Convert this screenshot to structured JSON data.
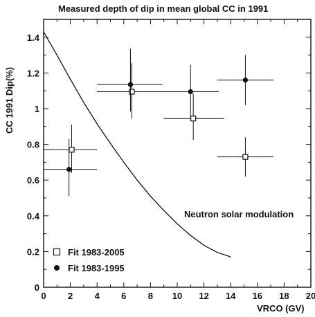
{
  "chart_data": {
    "type": "scatter",
    "title": "Measured depth of dip in mean global CC in 1991",
    "xlabel": "VRCO (GV)",
    "ylabel": "CC 1991 Dip(%)",
    "xlim": [
      0,
      20
    ],
    "ylim": [
      0,
      1.5
    ],
    "xticks": [
      0,
      2,
      4,
      6,
      8,
      10,
      12,
      14,
      16,
      18,
      20
    ],
    "yticks": [
      0,
      0.2,
      0.4,
      0.6,
      0.8,
      1,
      1.2,
      1.4
    ],
    "grid": false,
    "legend_position": "bottom-left",
    "series": [
      {
        "name": "Fit 1983-2005",
        "marker": "open-square",
        "color": "#111111",
        "points": [
          {
            "x": 2.1,
            "y": 0.77,
            "xerr": [
              2.1,
              1.9
            ],
            "yerr": [
              0.13,
              0.14
            ]
          },
          {
            "x": 6.6,
            "y": 1.095,
            "xerr": [
              2.6,
              6.4
            ],
            "yerr": [
              0.15,
              0.16
            ]
          },
          {
            "x": 11.2,
            "y": 0.945,
            "xerr": [
              2.2,
              2.3
            ],
            "yerr": [
              0.12,
              0.14
            ]
          },
          {
            "x": 15.1,
            "y": 0.73,
            "xerr": [
              2.1,
              2.1
            ],
            "yerr": [
              0.11,
              0.11
            ]
          }
        ]
      },
      {
        "name": "Fit 1983-1995",
        "marker": "filled-circle",
        "color": "#111111",
        "points": [
          {
            "x": 1.9,
            "y": 0.66,
            "xerr": [
              1.9,
              2.1
            ],
            "yerr": [
              0.15,
              0.17
            ]
          },
          {
            "x": 6.5,
            "y": 1.135,
            "xerr": [
              2.5,
              2.4
            ],
            "yerr": [
              0.15,
              0.2
            ]
          },
          {
            "x": 11.0,
            "y": 1.095,
            "xerr": [
              2.2,
              2.1
            ],
            "yerr": [
              0.14,
              0.15
            ]
          },
          {
            "x": 15.1,
            "y": 1.16,
            "xerr": [
              2.1,
              2.1
            ],
            "yerr": [
              0.14,
              0.14
            ]
          }
        ]
      }
    ],
    "curve": {
      "label": "Neutron solar modulation",
      "x": [
        0,
        1,
        2,
        3,
        4,
        5,
        6,
        7,
        8,
        9,
        10,
        11,
        12,
        13,
        14
      ],
      "y": [
        1.43,
        1.3,
        1.165,
        1.035,
        0.915,
        0.805,
        0.7,
        0.6,
        0.51,
        0.43,
        0.355,
        0.29,
        0.235,
        0.195,
        0.17
      ]
    }
  }
}
